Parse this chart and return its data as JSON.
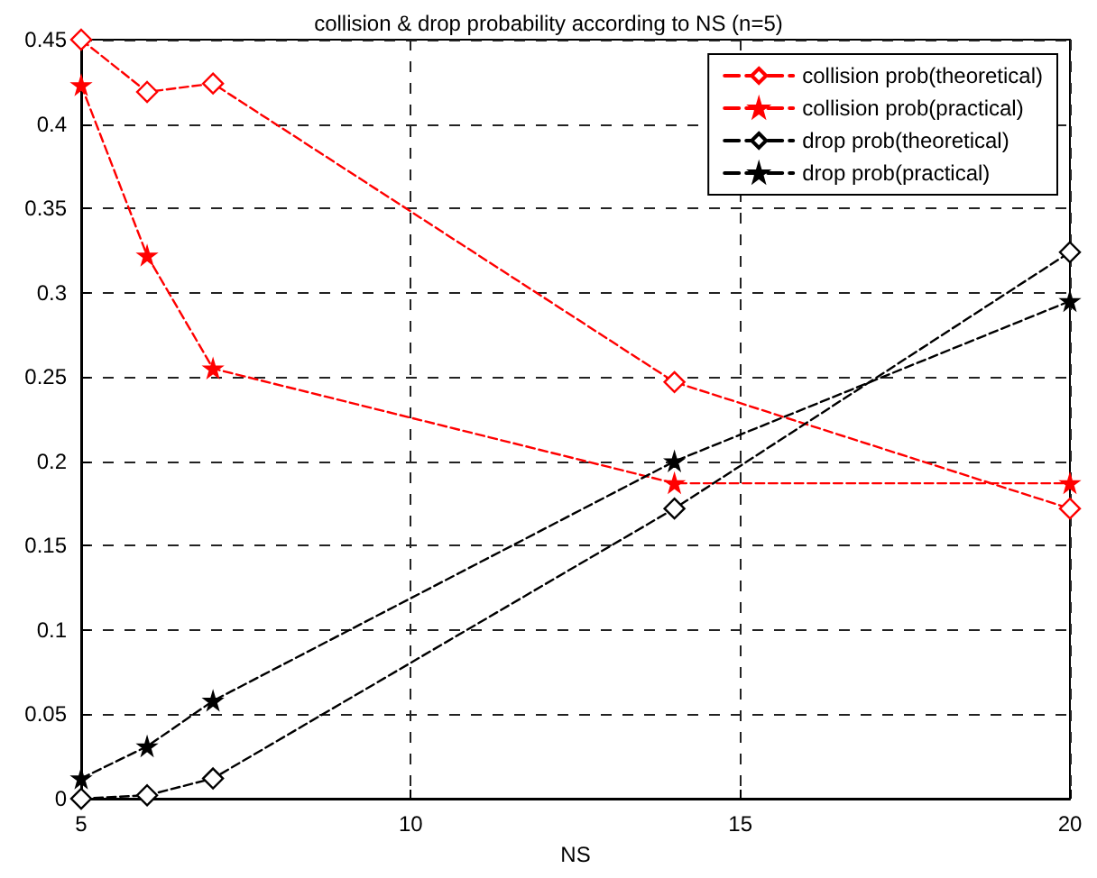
{
  "chart_data": {
    "type": "line",
    "title": "collision & drop probability according to NS (n=5)",
    "xlabel": "NS",
    "x": [
      5,
      6,
      7,
      14,
      20
    ],
    "series": [
      {
        "name": "collision prob(theoretical)",
        "color": "#ff0000",
        "marker": "diamond",
        "values": [
          0.45,
          0.419,
          0.424,
          0.247,
          0.172
        ]
      },
      {
        "name": "collision prob(practical)",
        "color": "#ff0000",
        "marker": "star",
        "values": [
          0.423,
          0.322,
          0.255,
          0.187,
          0.187
        ]
      },
      {
        "name": "drop prob(theoretical)",
        "color": "#000000",
        "marker": "diamond",
        "values": [
          0,
          0.002,
          0.012,
          0.172,
          0.324
        ]
      },
      {
        "name": "drop prob(practical)",
        "color": "#000000",
        "marker": "star",
        "values": [
          0.012,
          0.031,
          0.058,
          0.2,
          0.295
        ]
      }
    ],
    "xlim": [
      5,
      20
    ],
    "xticks": [
      5,
      10,
      15,
      20
    ],
    "ylim": [
      0,
      0.45
    ],
    "yticks": [
      0,
      0.05,
      0.1,
      0.15,
      0.2,
      0.25,
      0.3,
      0.35,
      0.4,
      0.45
    ],
    "grid": true,
    "legend": "top right",
    "line_style": "dashed"
  }
}
